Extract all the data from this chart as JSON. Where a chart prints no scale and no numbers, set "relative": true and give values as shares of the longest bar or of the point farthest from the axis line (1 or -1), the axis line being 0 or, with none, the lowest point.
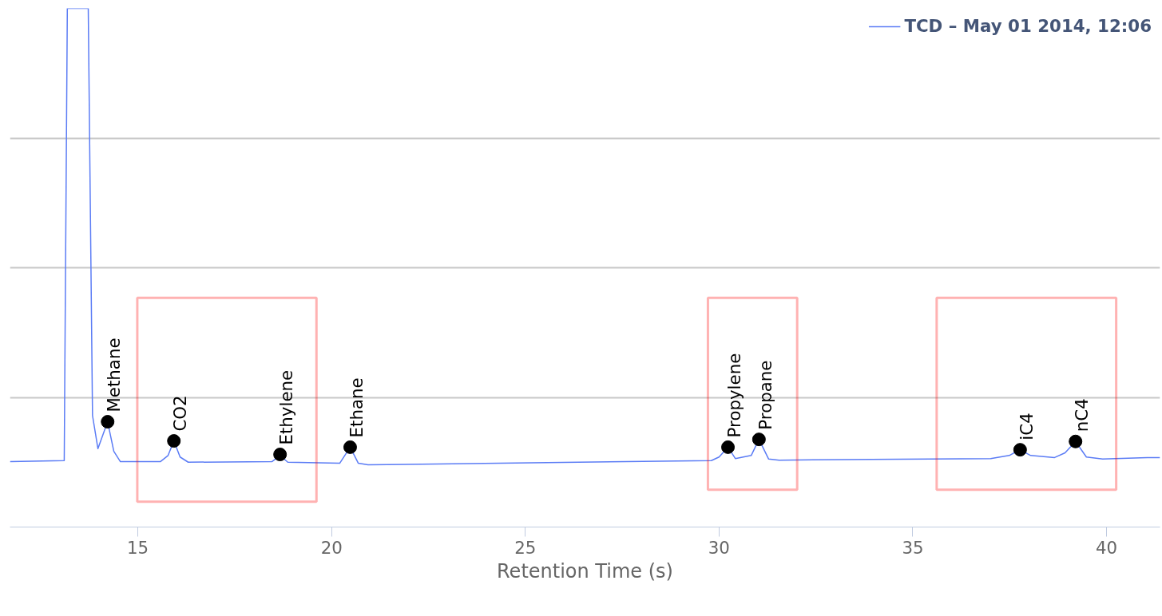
{
  "chart_data": {
    "type": "line",
    "relative": true,
    "xlabel": "Retention Time (s)",
    "xlim": [
      11.7,
      41.38
    ],
    "xticks": [
      15,
      20,
      25,
      30,
      35,
      40
    ],
    "grid": "y",
    "legend": "top right",
    "marker": "none",
    "line_style": "solid",
    "series": [
      {
        "name": "TCD – May 01 2014, 12:06",
        "color": "#5b7cf5",
        "x": [
          11.7,
          13.1,
          13.18,
          13.72,
          13.83,
          13.97,
          14.22,
          14.38,
          14.55,
          15.58,
          15.78,
          15.93,
          16.09,
          16.3,
          18.46,
          18.67,
          18.87,
          20.21,
          20.48,
          20.69,
          20.94,
          29.8,
          30.0,
          30.23,
          30.42,
          30.83,
          31.03,
          31.28,
          31.55,
          37.01,
          37.49,
          37.77,
          38.04,
          38.66,
          38.93,
          39.2,
          39.48,
          39.9,
          41.05,
          41.38
        ],
        "values": [
          0.126,
          0.128,
          1.0,
          1.0,
          0.215,
          0.151,
          0.203,
          0.146,
          0.126,
          0.126,
          0.138,
          0.166,
          0.135,
          0.125,
          0.126,
          0.138,
          0.125,
          0.123,
          0.154,
          0.123,
          0.12,
          0.128,
          0.135,
          0.154,
          0.132,
          0.138,
          0.169,
          0.131,
          0.129,
          0.132,
          0.138,
          0.149,
          0.138,
          0.134,
          0.143,
          0.165,
          0.135,
          0.131,
          0.134,
          0.134
        ]
      }
    ],
    "annotations": [
      {
        "text": "Methane",
        "x": 14.22,
        "y": 0.203
      },
      {
        "text": "CO2",
        "x": 15.93,
        "y": 0.166
      },
      {
        "text": "Ethylene",
        "x": 18.67,
        "y": 0.14
      },
      {
        "text": "Ethane",
        "x": 20.48,
        "y": 0.154
      },
      {
        "text": "Propylene",
        "x": 30.23,
        "y": 0.154
      },
      {
        "text": "Propane",
        "x": 31.03,
        "y": 0.169
      },
      {
        "text": "iC4",
        "x": 37.77,
        "y": 0.149
      },
      {
        "text": "nC4",
        "x": 39.2,
        "y": 0.165
      }
    ]
  }
}
